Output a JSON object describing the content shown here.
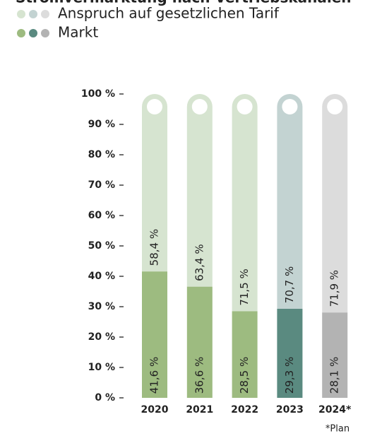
{
  "chart_data": {
    "type": "stacked-bar",
    "title": "Stromvermarktung nach Vertriebskanälen",
    "categories": [
      "2020",
      "2021",
      "2022",
      "2023",
      "2024*"
    ],
    "series": [
      {
        "name": "Markt",
        "colors": [
          "#9dbb80",
          "#9dbb80",
          "#9dbb80",
          "#5a8a80",
          "#b3b3b3"
        ],
        "values": [
          41.6,
          36.6,
          28.5,
          29.3,
          28.1
        ],
        "value_labels": [
          "41,6 %",
          "36,6 %",
          "28,5 %",
          "29,3 %",
          "28,1 %"
        ]
      },
      {
        "name": "Anspruch auf gesetzlichen Tarif",
        "colors": [
          "#d6e4d0",
          "#d6e4d0",
          "#d6e4d0",
          "#c3d3d2",
          "#dcdcdc"
        ],
        "label_colors": [
          "#9dbb80",
          "#9dbb80",
          "#9dbb80",
          "#5a8a80",
          "#9a9a9a"
        ],
        "values": [
          58.4,
          63.4,
          71.5,
          70.7,
          71.9
        ],
        "value_labels": [
          "58,4 %",
          "63,4 %",
          "71,5 %",
          "70,7 %",
          "71,9 %"
        ]
      }
    ],
    "ylim": [
      0,
      100
    ],
    "yticks": [
      {
        "value": 0,
        "label": "0 %"
      },
      {
        "value": 10,
        "label": "10 %"
      },
      {
        "value": 20,
        "label": "20 %"
      },
      {
        "value": 30,
        "label": "30 %"
      },
      {
        "value": 40,
        "label": "40 %"
      },
      {
        "value": 50,
        "label": "50 %"
      },
      {
        "value": 60,
        "label": "60 %"
      },
      {
        "value": 70,
        "label": "70 %"
      },
      {
        "value": 80,
        "label": "80 %"
      },
      {
        "value": 90,
        "label": "90 %"
      },
      {
        "value": 100,
        "label": "100 %"
      }
    ],
    "footnote": "*Plan"
  }
}
